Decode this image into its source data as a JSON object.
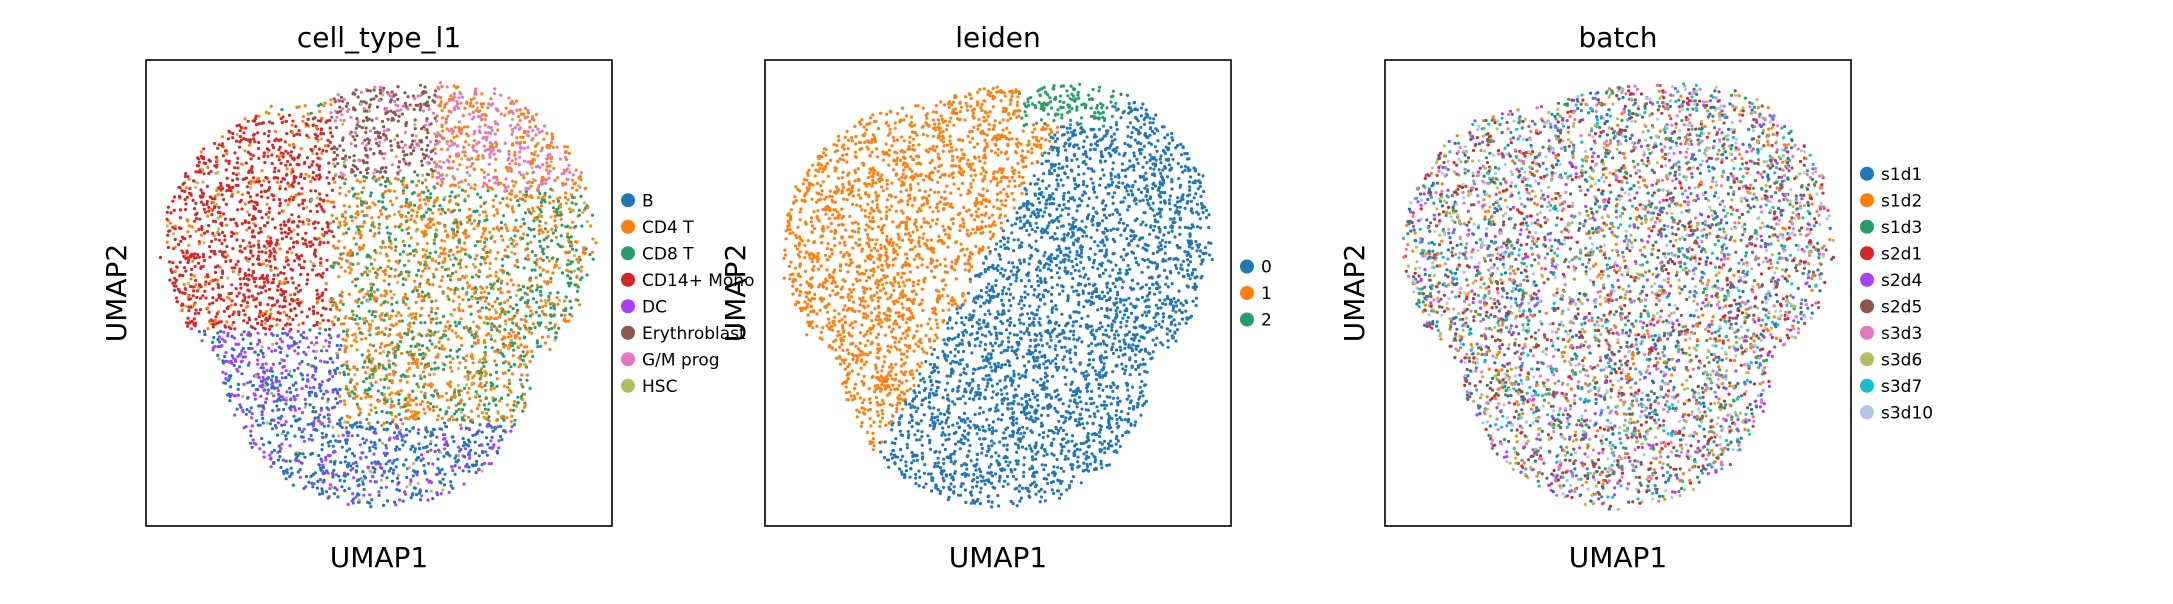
{
  "figure": {
    "panels": [
      {
        "title": "cell_type_l1",
        "xlabel": "UMAP1",
        "ylabel": "UMAP2"
      },
      {
        "title": "leiden",
        "xlabel": "UMAP1",
        "ylabel": "UMAP2"
      },
      {
        "title": "batch",
        "xlabel": "UMAP1",
        "ylabel": "UMAP2"
      }
    ]
  },
  "chart_data": [
    {
      "type": "scatter",
      "title": "cell_type_l1",
      "xlabel": "UMAP1",
      "ylabel": "UMAP2",
      "ticks": "none",
      "grid": false,
      "legend_position": "right",
      "legend": [
        "B",
        "CD4 T",
        "CD8 T",
        "CD14+ Mono",
        "DC",
        "Erythroblast",
        "G/M prog",
        "HSC"
      ],
      "colors": [
        "#1f77b4",
        "#ff7f0e",
        "#279e68",
        "#d62728",
        "#aa40fc",
        "#8c564b",
        "#e377c2",
        "#b5bd61"
      ],
      "regions": [
        {
          "category": "CD14+ Mono",
          "position": "upper-left"
        },
        {
          "category": "Erythroblast",
          "position": "top-center"
        },
        {
          "category": "G/M prog",
          "position": "top-right"
        },
        {
          "category": "CD4 T",
          "position": "center-right"
        },
        {
          "category": "CD8 T",
          "position": "right edge"
        },
        {
          "category": "DC",
          "position": "lower-left"
        },
        {
          "category": "B",
          "position": "bottom"
        },
        {
          "category": "HSC",
          "position": "scattered"
        }
      ]
    },
    {
      "type": "scatter",
      "title": "leiden",
      "xlabel": "UMAP1",
      "ylabel": "UMAP2",
      "ticks": "none",
      "grid": false,
      "legend_position": "right",
      "legend": [
        "0",
        "1",
        "2"
      ],
      "colors": [
        "#1f77b4",
        "#ff7f0e",
        "#279e68"
      ],
      "regions": [
        {
          "category": "1",
          "position": "left half"
        },
        {
          "category": "0",
          "position": "right and lower half"
        },
        {
          "category": "2",
          "position": "top-center"
        }
      ]
    },
    {
      "type": "scatter",
      "title": "batch",
      "xlabel": "UMAP1",
      "ylabel": "UMAP2",
      "ticks": "none",
      "grid": false,
      "legend_position": "right",
      "legend": [
        "s1d1",
        "s1d2",
        "s1d3",
        "s2d1",
        "s2d4",
        "s2d5",
        "s3d3",
        "s3d6",
        "s3d7",
        "s3d10"
      ],
      "colors": [
        "#1f77b4",
        "#ff7f0e",
        "#279e68",
        "#d62728",
        "#aa40fc",
        "#8c564b",
        "#e377c2",
        "#b5bd61",
        "#17becf",
        "#aec7e8"
      ],
      "regions": [
        {
          "category": "all batches",
          "position": "intermixed across the whole embedding"
        }
      ]
    }
  ]
}
